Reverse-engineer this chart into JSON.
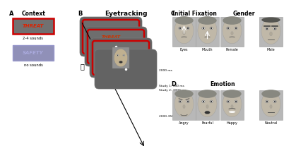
{
  "background_color": "#ffffff",
  "panel_A_label": "A",
  "panel_B_label": "B",
  "panel_C_label": "C",
  "panel_D_label": "D",
  "panel_B_title": "Eyetracking",
  "panel_C_title_left": "Initial Fixation",
  "panel_C_title_right": "Gender",
  "panel_D_title": "Emotion",
  "context_title": "Context",
  "threat_text": "THREAT",
  "safety_text": "SAFETY",
  "threat_sounds": "2-4 sounds",
  "safety_sounds": "no sounds",
  "timing_1": "2000 ms",
  "timing_2": "Study 1: 330 ms\nStudy 2: 3000 ms",
  "timing_3": "2000-3500 ms",
  "face_labels_C": [
    "Eyes",
    "Mouth",
    "Female",
    "Male"
  ],
  "face_labels_D": [
    "Angry",
    "Fearful",
    "Happy",
    "Neutral"
  ],
  "threat_bg": "#717171",
  "safety_bg": "#9090b8",
  "threat_border": "#cc0000",
  "safety_border": "#9999cc",
  "red_border": "#cc0000",
  "screen_bg": "#636363",
  "screen_inner_bg": "#6e6e6e",
  "face_photo_bg": "#aaaaaa"
}
